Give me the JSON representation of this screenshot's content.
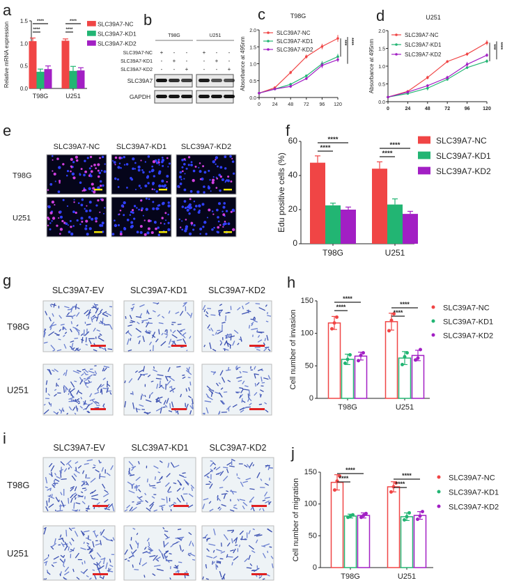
{
  "panel_letters": [
    "a",
    "b",
    "c",
    "d",
    "e",
    "f",
    "g",
    "h",
    "i",
    "j"
  ],
  "colors": {
    "NC": "#f04545",
    "KD1": "#22b573",
    "KD2": "#a21fc4",
    "scale_bar_e": "#f2e600",
    "scale_bar_gi": "#e02020"
  },
  "blot": {
    "groups": [
      "T98G",
      "U251"
    ],
    "conditions": [
      "SLC39A7-NC",
      "SLC39A7-KD1",
      "SLC39A7-KD2"
    ],
    "signs": [
      [
        "+",
        "-",
        "-",
        "+",
        "-",
        "-"
      ],
      [
        "-",
        "+",
        "-",
        "-",
        "+",
        "-"
      ],
      [
        "-",
        "-",
        "+",
        "-",
        "-",
        "+"
      ]
    ],
    "bands": [
      "SLC39A7",
      "GAPDH"
    ],
    "slc39a7_intensity": [
      1.0,
      0.8,
      0.7,
      0.95,
      0.55,
      0.55
    ]
  },
  "micrographs": {
    "e": {
      "columns": [
        "SLC39A7-NC",
        "SLC39A7-KD1",
        "SLC39A7-KD2"
      ],
      "rows": [
        "T98G",
        "U251"
      ]
    },
    "g": {
      "columns": [
        "SLC39A7-EV",
        "SLC39A7-KD1",
        "SLC39A7-KD2"
      ],
      "rows": [
        "T98G",
        "U251"
      ]
    },
    "i": {
      "columns": [
        "SLC39A7-EV",
        "SLC39A7-KD1",
        "SLC39A7-KD2"
      ],
      "rows": [
        "T98G",
        "U251"
      ]
    }
  },
  "chart_data": [
    {
      "panel": "a",
      "type": "bar",
      "style": "filled",
      "ylabel": "Relative mRNA expression",
      "ylim": [
        0,
        1.5
      ],
      "yticks": [
        "0.0",
        "0.5",
        "1.0",
        "1.5"
      ],
      "categories": [
        "T98G",
        "U251"
      ],
      "series": [
        {
          "name": "SLC39A7-NC",
          "values": [
            1.05,
            1.06
          ],
          "errors": [
            0.07,
            0.04
          ]
        },
        {
          "name": "SLC39A7-KD1",
          "values": [
            0.37,
            0.39
          ],
          "errors": [
            0.06,
            0.1
          ]
        },
        {
          "name": "SLC39A7-KD2",
          "values": [
            0.43,
            0.4
          ],
          "errors": [
            0.07,
            0.06
          ]
        }
      ],
      "significance": [
        "****",
        "****",
        "****",
        "****"
      ],
      "legend": "right"
    },
    {
      "panel": "c",
      "type": "line",
      "title": "T98G",
      "ylabel": "Absorbance at 495nm",
      "ylim": [
        0,
        2.0
      ],
      "yticks": [
        "0.0",
        "0.5",
        "1.0",
        "1.5",
        "2.0"
      ],
      "xlim": [
        0,
        120
      ],
      "xticks": [
        "0",
        "24",
        "48",
        "72",
        "96",
        "120"
      ],
      "series": [
        {
          "name": "SLC39A7-NC",
          "values": [
            0.13,
            0.29,
            0.74,
            1.21,
            1.51,
            1.75
          ],
          "errors": [
            0.02,
            0.04,
            0.05,
            0.06,
            0.08,
            0.1
          ]
        },
        {
          "name": "SLC39A7-KD1",
          "values": [
            0.13,
            0.25,
            0.39,
            0.64,
            1.0,
            1.21
          ],
          "errors": [
            0.02,
            0.03,
            0.04,
            0.04,
            0.08,
            0.08
          ]
        },
        {
          "name": "SLC39A7-KD2",
          "values": [
            0.13,
            0.25,
            0.33,
            0.56,
            0.95,
            1.12
          ],
          "errors": [
            0.02,
            0.03,
            0.04,
            0.04,
            0.08,
            0.07
          ]
        }
      ],
      "significance": [
        "***",
        "****"
      ],
      "legend": "top-left"
    },
    {
      "panel": "d",
      "type": "line",
      "title": "U251",
      "ylabel": "Absorbance at 495nm",
      "ylim": [
        0,
        2.0
      ],
      "yticks": [
        "0.0",
        "0.5",
        "1.0",
        "1.5",
        "2.0"
      ],
      "xlim": [
        0,
        120
      ],
      "xticks": [
        "0",
        "24",
        "48",
        "72",
        "96",
        "120"
      ],
      "series": [
        {
          "name": "SLC39A7-NC",
          "values": [
            0.13,
            0.29,
            0.68,
            1.13,
            1.34,
            1.66
          ],
          "errors": [
            0.02,
            0.03,
            0.05,
            0.04,
            0.05,
            0.07
          ]
        },
        {
          "name": "SLC39A7-KD1",
          "values": [
            0.13,
            0.23,
            0.38,
            0.63,
            0.96,
            1.14
          ],
          "errors": [
            0.02,
            0.03,
            0.06,
            0.04,
            0.04,
            0.05
          ]
        },
        {
          "name": "SLC39A7-KD2",
          "values": [
            0.13,
            0.27,
            0.45,
            0.68,
            1.05,
            1.31
          ],
          "errors": [
            0.02,
            0.03,
            0.04,
            0.05,
            0.07,
            0.05
          ]
        }
      ],
      "significance": [
        "***",
        "****"
      ],
      "legend": "top-left"
    },
    {
      "panel": "f",
      "type": "bar",
      "style": "filled",
      "ylabel": "Edu positive cells (%)",
      "ylim": [
        0,
        60
      ],
      "yticks": [
        "0",
        "20",
        "40",
        "60"
      ],
      "categories": [
        "T98G",
        "U251"
      ],
      "series": [
        {
          "name": "SLC39A7-NC",
          "values": [
            47.5,
            44
          ],
          "errors": [
            4,
            4
          ]
        },
        {
          "name": "SLC39A7-KD1",
          "values": [
            22.5,
            23
          ],
          "errors": [
            1.3,
            3.3
          ]
        },
        {
          "name": "SLC39A7-KD2",
          "values": [
            20,
            17.5
          ],
          "errors": [
            1.5,
            1.5
          ]
        }
      ],
      "significance": [
        "****",
        "****",
        "****",
        "****"
      ],
      "legend": "right"
    },
    {
      "panel": "h",
      "type": "bar",
      "style": "hollow-with-points",
      "ylabel": "Cell number of invasion",
      "ylim": [
        0,
        150
      ],
      "yticks": [
        "0",
        "50",
        "100",
        "150"
      ],
      "categories": [
        "T98G",
        "U251"
      ],
      "series": [
        {
          "name": "SLC39A7-NC",
          "values": [
            116,
            118
          ],
          "errors": [
            10,
            13
          ],
          "points": [
            [
              107,
              116,
              125
            ],
            [
              104,
              120,
              130
            ]
          ]
        },
        {
          "name": "SLC39A7-KD1",
          "values": [
            60,
            62
          ],
          "errors": [
            8,
            10
          ],
          "points": [
            [
              54,
              60,
              67
            ],
            [
              52,
              64,
              70
            ]
          ]
        },
        {
          "name": "SLC39A7-KD2",
          "values": [
            65,
            66
          ],
          "errors": [
            6,
            8
          ],
          "points": [
            [
              58,
              66,
              70
            ],
            [
              59,
              62,
              75
            ]
          ]
        }
      ],
      "significance": [
        "****",
        "****",
        "****",
        "****"
      ],
      "legend": "right"
    },
    {
      "panel": "j",
      "type": "bar",
      "style": "hollow-with-points",
      "ylabel": "Cell number of migration",
      "ylim": [
        0,
        150
      ],
      "yticks": [
        "0",
        "50",
        "100",
        "150"
      ],
      "categories": [
        "T98G",
        "U251"
      ],
      "series": [
        {
          "name": "SLC39A7-NC",
          "values": [
            134,
            127
          ],
          "errors": [
            12,
            8
          ],
          "points": [
            [
              122,
              136,
              144
            ],
            [
              119,
              127,
              133
            ]
          ]
        },
        {
          "name": "SLC39A7-KD1",
          "values": [
            81,
            80
          ],
          "errors": [
            3,
            6
          ],
          "points": [
            [
              79,
              81,
              83
            ],
            [
              75,
              80,
              86
            ]
          ]
        },
        {
          "name": "SLC39A7-KD2",
          "values": [
            82,
            82
          ],
          "errors": [
            4,
            6
          ],
          "points": [
            [
              79,
              82,
              85
            ],
            [
              76,
              81,
              88
            ]
          ]
        }
      ],
      "significance": [
        "****",
        "****",
        "****",
        "****"
      ],
      "legend": "right"
    }
  ]
}
